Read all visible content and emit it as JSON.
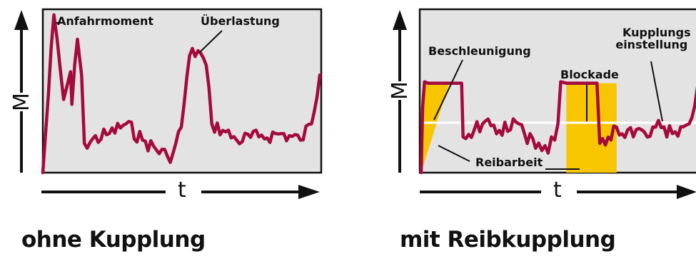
{
  "colors": {
    "plot_bg": "#e3e3e3",
    "plot_border": "#111111",
    "torque_line": "#a50a3c",
    "friction_fill": "#f7c600",
    "setting_line": "#ffffff",
    "axis": "#111111"
  },
  "left": {
    "caption": "ohne Kupplung",
    "y_axis_label": "M",
    "x_axis_label": "t",
    "annotations": {
      "start": "Anfahrmoment",
      "overload": "Überlastung"
    }
  },
  "right": {
    "caption": "mit Reibkupplung",
    "y_axis_label": "M",
    "x_axis_label": "t",
    "annotations": {
      "acceleration": "Beschleunigung",
      "block": "Blockade",
      "setting_line1": "Kupplungs",
      "setting_line2": "einstellung",
      "friction": "Reibarbeit"
    }
  },
  "chart_data": [
    {
      "type": "line",
      "x": [
        0,
        0.05,
        0.1,
        0.15,
        0.2,
        0.25,
        0.3,
        0.35,
        0.4,
        0.45,
        0.5,
        0.55,
        0.6,
        0.65,
        0.7,
        0.75,
        0.8,
        0.85,
        0.9,
        0.95,
        1.0
      ],
      "values": [
        0,
        0.95,
        0.45,
        0.85,
        0.2,
        0.25,
        0.3,
        0.22,
        0.15,
        0.12,
        0.3,
        0.55,
        0.82,
        0.6,
        0.28,
        0.22,
        0.18,
        0.2,
        0.25,
        0.2,
        0.6
      ]
    },
    {
      "type": "line",
      "x": [
        0,
        0.05,
        0.1,
        0.15,
        0.2,
        0.25,
        0.3,
        0.35,
        0.4,
        0.45,
        0.5,
        0.55,
        0.6,
        0.65,
        0.7,
        0.75,
        0.8,
        0.85,
        0.9,
        0.95,
        1.0
      ],
      "values": [
        0,
        0.55,
        0.55,
        0.2,
        0.25,
        0.3,
        0.22,
        0.25,
        0.15,
        0.12,
        0.55,
        0.55,
        0.55,
        0.55,
        0.25,
        0.2,
        0.28,
        0.24,
        0.3,
        0.35,
        0.55
      ],
      "clutch_setting": 0.55
    }
  ]
}
